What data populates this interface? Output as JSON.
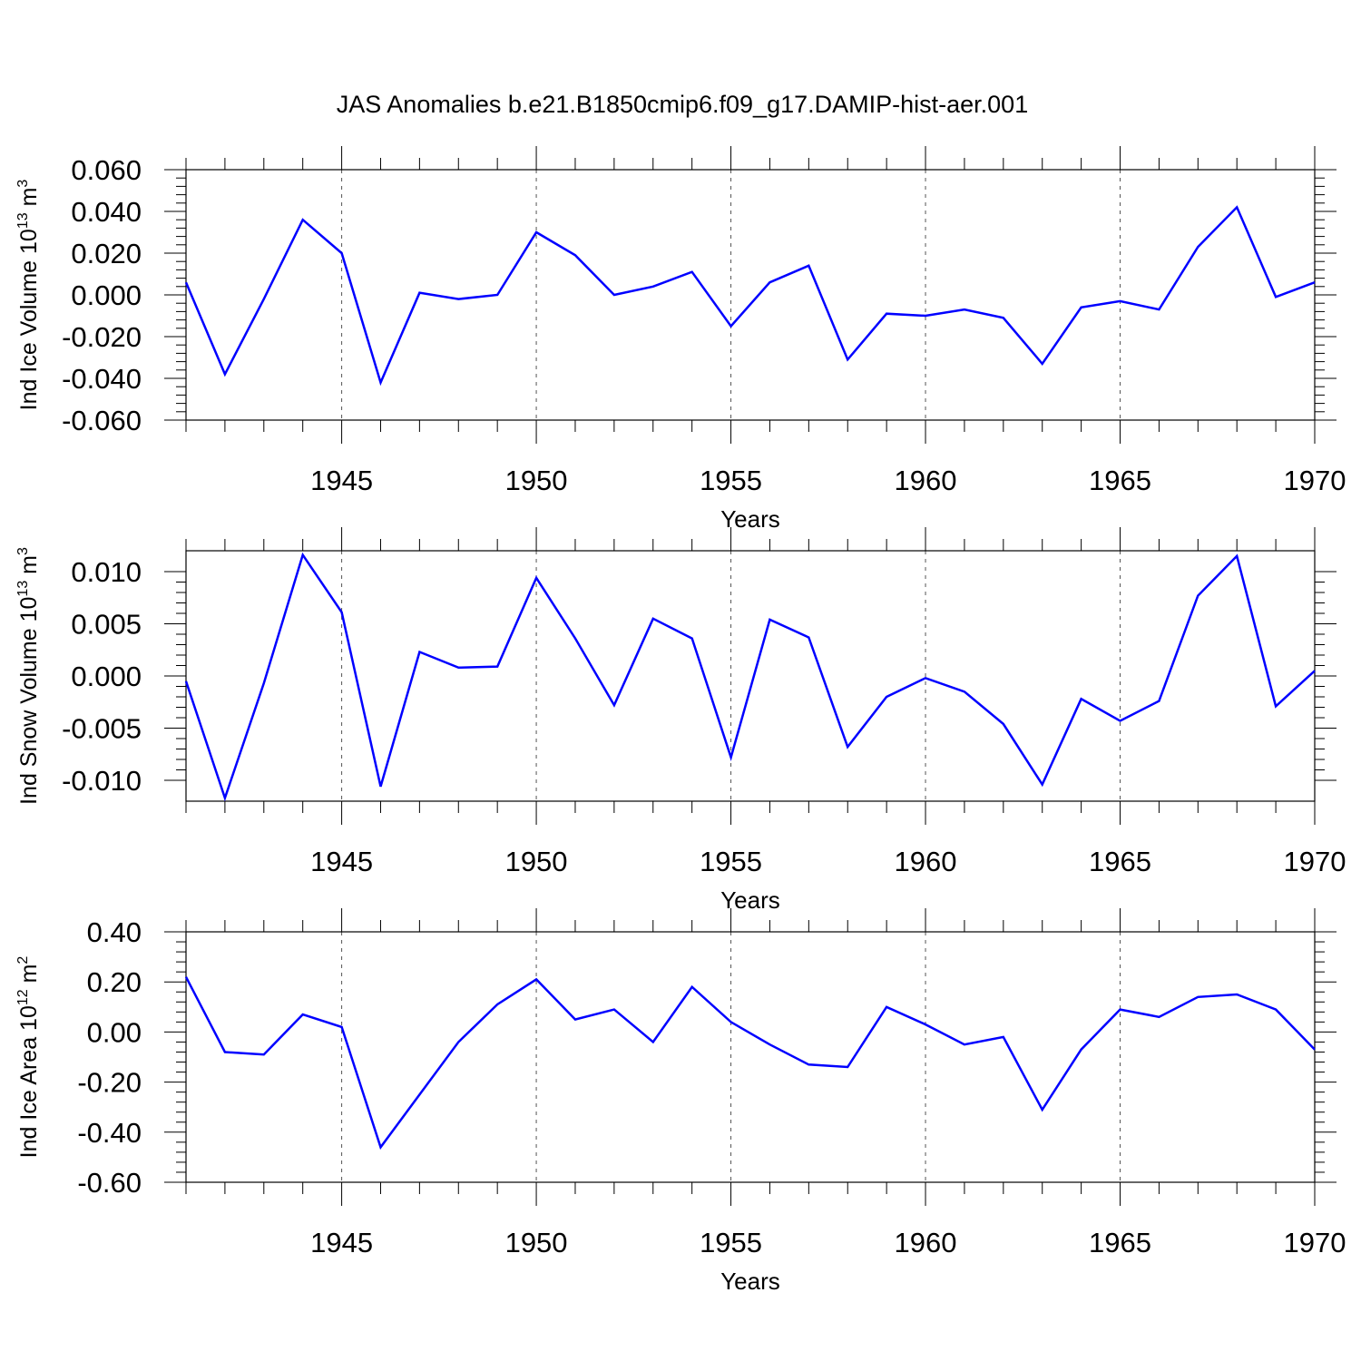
{
  "title": "JAS Anomalies b.e21.B1850cmip6.f09_g17.DAMIP-hist-aer.001",
  "colors": {
    "line": "#0000ff",
    "axis": "#000000",
    "grid": "#555555"
  },
  "chart_data": [
    {
      "type": "line",
      "title": "JAS Anomalies b.e21.B1850cmip6.f09_g17.DAMIP-hist-aer.001",
      "ylabel_prefix": "Ind Ice Volume 10",
      "ylabel_exp": "13",
      "ylabel_unit": " m",
      "ylabel_unit_exp": "3",
      "xlabel": "Years",
      "xlim": [
        1941,
        1970
      ],
      "ylim": [
        -0.06,
        0.06
      ],
      "yticks": [
        -0.06,
        -0.04,
        -0.02,
        0.0,
        0.02,
        0.04,
        0.06
      ],
      "ytick_labels": [
        "-0.060",
        "-0.040",
        "-0.020",
        "0.000",
        "0.020",
        "0.040",
        "0.060"
      ],
      "xticks": [
        1945,
        1950,
        1955,
        1960,
        1965,
        1970
      ],
      "xtick_labels": [
        "1945",
        "1950",
        "1955",
        "1960",
        "1965",
        "1970"
      ],
      "grid": "vertical dashed at labeled years",
      "x": [
        1941,
        1942,
        1943,
        1944,
        1945,
        1946,
        1947,
        1948,
        1949,
        1950,
        1951,
        1952,
        1953,
        1954,
        1955,
        1956,
        1957,
        1958,
        1959,
        1960,
        1961,
        1962,
        1963,
        1964,
        1965,
        1966,
        1967,
        1968,
        1969,
        1970
      ],
      "values": [
        0.006,
        -0.038,
        -0.002,
        0.036,
        0.02,
        -0.042,
        0.001,
        -0.002,
        0.0,
        0.03,
        0.019,
        0.0,
        0.004,
        0.011,
        -0.015,
        0.006,
        0.014,
        -0.031,
        -0.009,
        -0.01,
        -0.007,
        -0.011,
        -0.033,
        -0.006,
        -0.003,
        -0.007,
        0.023,
        0.042,
        -0.001,
        0.006
      ]
    },
    {
      "type": "line",
      "ylabel_prefix": "Ind Snow Volume 10",
      "ylabel_exp": "13",
      "ylabel_unit": " m",
      "ylabel_unit_exp": "3",
      "xlabel": "Years",
      "xlim": [
        1941,
        1970
      ],
      "ylim": [
        -0.012,
        0.012
      ],
      "yticks": [
        -0.01,
        -0.005,
        0.0,
        0.005,
        0.01
      ],
      "ytick_labels": [
        "-0.010",
        "-0.005",
        "0.000",
        "0.005",
        "0.010"
      ],
      "xticks": [
        1945,
        1950,
        1955,
        1960,
        1965,
        1970
      ],
      "xtick_labels": [
        "1945",
        "1950",
        "1955",
        "1960",
        "1965",
        "1970"
      ],
      "grid": "vertical dashed at labeled years",
      "x": [
        1941,
        1942,
        1943,
        1944,
        1945,
        1946,
        1947,
        1948,
        1949,
        1950,
        1951,
        1952,
        1953,
        1954,
        1955,
        1956,
        1957,
        1958,
        1959,
        1960,
        1961,
        1962,
        1963,
        1964,
        1965,
        1966,
        1967,
        1968,
        1969,
        1970
      ],
      "values": [
        -0.0005,
        -0.0117,
        -0.0007,
        0.0116,
        0.0061,
        -0.0106,
        0.0023,
        0.0008,
        0.0009,
        0.0094,
        0.0036,
        -0.0028,
        0.0055,
        0.0036,
        -0.0078,
        0.0054,
        0.0037,
        -0.0068,
        -0.002,
        -0.0002,
        -0.0015,
        -0.0046,
        -0.0104,
        -0.0022,
        -0.0043,
        -0.0024,
        0.0077,
        0.0115,
        -0.0029,
        0.0005
      ]
    },
    {
      "type": "line",
      "ylabel_prefix": "Ind Ice Area 10",
      "ylabel_exp": "12",
      "ylabel_unit": " m",
      "ylabel_unit_exp": "2",
      "xlabel": "Years",
      "xlim": [
        1941,
        1970
      ],
      "ylim": [
        -0.6,
        0.4
      ],
      "yticks": [
        -0.6,
        -0.4,
        -0.2,
        0.0,
        0.2,
        0.4
      ],
      "ytick_labels": [
        "-0.60",
        "-0.40",
        "-0.20",
        "0.00",
        "0.20",
        "0.40"
      ],
      "xticks": [
        1945,
        1950,
        1955,
        1960,
        1965,
        1970
      ],
      "xtick_labels": [
        "1945",
        "1950",
        "1955",
        "1960",
        "1965",
        "1970"
      ],
      "grid": "vertical dashed at labeled years",
      "x": [
        1941,
        1942,
        1943,
        1944,
        1945,
        1946,
        1947,
        1948,
        1949,
        1950,
        1951,
        1952,
        1953,
        1954,
        1955,
        1956,
        1957,
        1958,
        1959,
        1960,
        1961,
        1962,
        1963,
        1964,
        1965,
        1966,
        1967,
        1968,
        1969,
        1970
      ],
      "values": [
        0.22,
        -0.08,
        -0.09,
        0.07,
        0.02,
        -0.46,
        -0.25,
        -0.04,
        0.11,
        0.21,
        0.05,
        0.09,
        -0.04,
        0.18,
        0.04,
        -0.05,
        -0.13,
        -0.14,
        0.1,
        0.03,
        -0.05,
        -0.02,
        -0.31,
        -0.07,
        0.09,
        0.06,
        0.14,
        0.15,
        0.09,
        -0.07
      ]
    }
  ]
}
